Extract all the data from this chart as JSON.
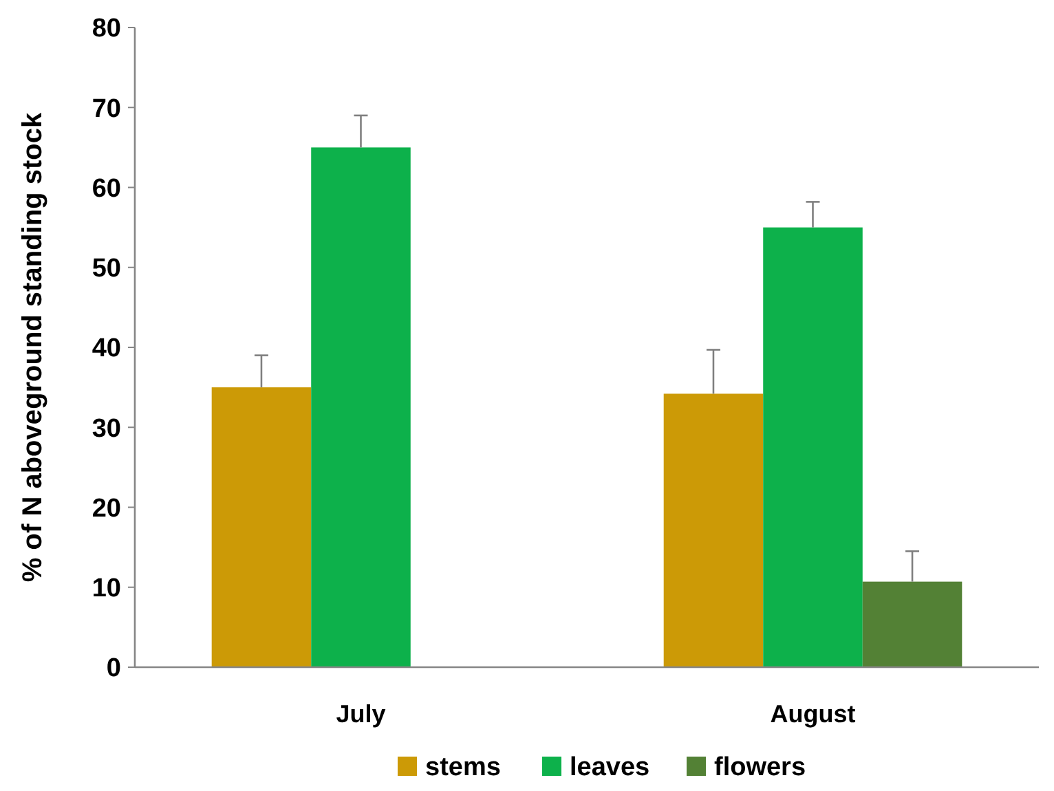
{
  "chart_data": {
    "type": "bar",
    "ylabel": "% of N aboveground standing stock",
    "categories": [
      "July",
      "August"
    ],
    "series": [
      {
        "name": "stems",
        "color": "#cc9a06",
        "values": [
          35,
          34.2
        ],
        "errors": [
          [
            35,
            39
          ],
          [
            34.2,
            39.7
          ]
        ]
      },
      {
        "name": "leaves",
        "color": "#0db14b",
        "values": [
          65,
          55
        ],
        "errors": [
          [
            65,
            69
          ],
          [
            55,
            58.2
          ]
        ]
      },
      {
        "name": "flowers",
        "color": "#538135",
        "values": [
          null,
          10.7
        ],
        "errors": [
          null,
          [
            10.7,
            14.5
          ]
        ]
      }
    ],
    "ylim": [
      0,
      80
    ],
    "yticks": [
      0,
      10,
      20,
      30,
      40,
      50,
      60,
      70,
      80
    ],
    "grid": false,
    "legend": "bottom"
  }
}
